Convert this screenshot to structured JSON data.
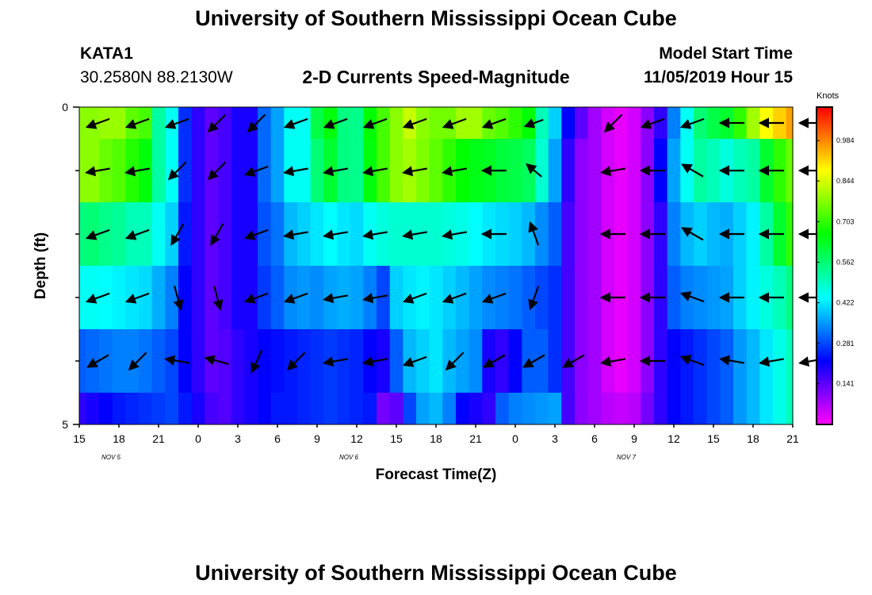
{
  "header": {
    "title": "University of Southern Mississippi Ocean Cube",
    "footer_title": "University of Southern Mississippi Ocean Cube",
    "station": "KATA1",
    "coords": "30.2580N 88.2130W",
    "chart_title": "2-D Currents Speed-Magnitude",
    "start_label": "Model Start Time",
    "start_value": "11/05/2019 Hour 15"
  },
  "chart_data": {
    "type": "heatmap",
    "title": "2-D Currents Speed-Magnitude",
    "xlabel": "Forecast Time(Z)",
    "ylabel": "Depth (ft)",
    "x_tick_labels": [
      "15",
      "18",
      "21",
      "0",
      "3",
      "6",
      "9",
      "12",
      "15",
      "18",
      "21",
      "0",
      "3",
      "6",
      "9",
      "12",
      "15",
      "18",
      "21"
    ],
    "day_labels": [
      {
        "label": "NOV 5",
        "tick_index": 1
      },
      {
        "label": "NOV 6",
        "tick_index": 7
      },
      {
        "label": "NOV 7",
        "tick_index": 14
      }
    ],
    "y_ticks": [
      {
        "depth": 0,
        "label": "0"
      },
      {
        "depth": 5,
        "label": "5"
      }
    ],
    "ylim": [
      0,
      5
    ],
    "x_range_hours": [
      0,
      54
    ],
    "hour_step": 1,
    "depth_levels": [
      0.25,
      1.0,
      2.0,
      3.0,
      4.0,
      4.75
    ],
    "depth_bounds": [
      0,
      0.5,
      1.5,
      2.5,
      3.5,
      4.5,
      5
    ],
    "colorbar": {
      "unit": "Knots",
      "range": [
        0.0,
        1.1
      ],
      "tick_values": [
        0.984,
        0.844,
        0.703,
        0.562,
        0.422,
        0.281,
        0.141
      ],
      "tick_labels": [
        "0.984",
        "0.844",
        "0.703",
        "0.562",
        "0.422",
        "0.281",
        "0.141"
      ]
    },
    "speed_knots": [
      [
        0.78,
        0.78,
        0.79,
        0.79,
        0.74,
        0.72,
        0.52,
        0.45,
        0.26,
        0.18,
        0.14,
        0.16,
        0.2,
        0.2,
        0.31,
        0.36,
        0.45,
        0.45,
        0.6,
        0.65,
        0.55,
        0.54,
        0.66,
        0.72,
        0.78,
        0.83,
        0.78,
        0.76,
        0.76,
        0.8,
        0.8,
        0.75,
        0.73,
        0.7,
        0.66,
        0.5,
        0.4,
        0.22,
        0.14,
        0.08,
        0.04,
        0.02,
        0.04,
        0.1,
        0.18,
        0.33,
        0.45,
        0.56,
        0.6,
        0.62,
        0.7,
        0.8,
        0.88,
        0.92,
        0.96
      ],
      [
        0.78,
        0.78,
        0.75,
        0.73,
        0.69,
        0.65,
        0.52,
        0.45,
        0.26,
        0.18,
        0.14,
        0.16,
        0.2,
        0.2,
        0.31,
        0.36,
        0.45,
        0.45,
        0.56,
        0.62,
        0.55,
        0.54,
        0.65,
        0.72,
        0.78,
        0.8,
        0.77,
        0.74,
        0.7,
        0.66,
        0.64,
        0.63,
        0.61,
        0.6,
        0.58,
        0.48,
        0.36,
        0.18,
        0.1,
        0.08,
        0.04,
        0.02,
        0.04,
        0.1,
        0.22,
        0.36,
        0.45,
        0.52,
        0.5,
        0.47,
        0.5,
        0.52,
        0.62,
        0.7,
        0.75
      ],
      [
        0.55,
        0.56,
        0.54,
        0.53,
        0.5,
        0.5,
        0.45,
        0.4,
        0.24,
        0.18,
        0.14,
        0.16,
        0.2,
        0.2,
        0.29,
        0.32,
        0.38,
        0.4,
        0.42,
        0.44,
        0.42,
        0.41,
        0.45,
        0.47,
        0.48,
        0.48,
        0.48,
        0.48,
        0.47,
        0.46,
        0.44,
        0.42,
        0.41,
        0.4,
        0.38,
        0.34,
        0.3,
        0.16,
        0.1,
        0.08,
        0.04,
        0.02,
        0.04,
        0.1,
        0.18,
        0.33,
        0.38,
        0.4,
        0.38,
        0.37,
        0.4,
        0.43,
        0.52,
        0.62,
        0.7
      ],
      [
        0.45,
        0.45,
        0.44,
        0.43,
        0.42,
        0.41,
        0.37,
        0.33,
        0.22,
        0.18,
        0.14,
        0.16,
        0.2,
        0.2,
        0.27,
        0.3,
        0.34,
        0.35,
        0.34,
        0.36,
        0.37,
        0.36,
        0.33,
        0.28,
        0.4,
        0.42,
        0.43,
        0.42,
        0.4,
        0.38,
        0.36,
        0.34,
        0.33,
        0.32,
        0.3,
        0.28,
        0.26,
        0.16,
        0.1,
        0.08,
        0.04,
        0.02,
        0.04,
        0.1,
        0.18,
        0.3,
        0.33,
        0.34,
        0.35,
        0.36,
        0.4,
        0.43,
        0.47,
        0.5,
        0.55
      ],
      [
        0.3,
        0.31,
        0.32,
        0.33,
        0.33,
        0.32,
        0.3,
        0.28,
        0.22,
        0.18,
        0.14,
        0.15,
        0.18,
        0.2,
        0.22,
        0.23,
        0.24,
        0.25,
        0.26,
        0.27,
        0.26,
        0.25,
        0.22,
        0.2,
        0.3,
        0.38,
        0.4,
        0.42,
        0.38,
        0.36,
        0.34,
        0.2,
        0.18,
        0.22,
        0.3,
        0.3,
        0.26,
        0.16,
        0.1,
        0.08,
        0.04,
        0.02,
        0.04,
        0.1,
        0.18,
        0.22,
        0.24,
        0.26,
        0.28,
        0.3,
        0.35,
        0.38,
        0.42,
        0.46,
        0.5
      ],
      [
        0.18,
        0.2,
        0.22,
        0.24,
        0.25,
        0.26,
        0.27,
        0.28,
        0.24,
        0.2,
        0.16,
        0.15,
        0.18,
        0.2,
        0.22,
        0.24,
        0.24,
        0.25,
        0.26,
        0.27,
        0.26,
        0.25,
        0.24,
        0.12,
        0.14,
        0.28,
        0.36,
        0.38,
        0.33,
        0.22,
        0.2,
        0.18,
        0.3,
        0.33,
        0.34,
        0.35,
        0.36,
        0.16,
        0.1,
        0.08,
        0.06,
        0.05,
        0.06,
        0.12,
        0.18,
        0.22,
        0.24,
        0.26,
        0.28,
        0.3,
        0.35,
        0.38,
        0.42,
        0.46,
        0.5
      ]
    ],
    "vector_hours": [
      0,
      3,
      6,
      9,
      12,
      15,
      18,
      21,
      24,
      27,
      30,
      33,
      36,
      39,
      42,
      45,
      48,
      51,
      54
    ],
    "vector_directions_deg": [
      [
        250,
        250,
        250,
        225,
        225,
        250,
        250,
        250,
        250,
        250,
        250,
        250,
        300,
        225,
        250,
        250,
        270,
        270,
        270
      ],
      [
        260,
        260,
        225,
        225,
        250,
        260,
        260,
        260,
        260,
        260,
        270,
        310,
        225,
        260,
        270,
        300,
        270,
        270,
        270
      ],
      [
        250,
        250,
        210,
        210,
        250,
        260,
        260,
        260,
        260,
        260,
        270,
        340,
        225,
        270,
        270,
        300,
        270,
        270,
        270
      ],
      [
        250,
        250,
        165,
        165,
        250,
        250,
        260,
        260,
        250,
        250,
        250,
        200,
        225,
        270,
        270,
        290,
        270,
        270,
        270
      ],
      [
        240,
        225,
        280,
        285,
        205,
        225,
        260,
        260,
        250,
        225,
        240,
        240,
        240,
        260,
        270,
        290,
        280,
        260,
        260
      ],
      [
        270,
        270,
        260,
        245,
        245,
        260,
        260,
        260,
        260,
        260,
        260,
        250,
        240,
        200,
        0,
        0,
        0,
        0,
        0
      ]
    ],
    "vector_magnitudes": [
      [
        1.0,
        1.0,
        1.0,
        1.0,
        1.0,
        1.0,
        1.0,
        1.0,
        1.0,
        1.0,
        1.0,
        0.8,
        0.0,
        1.0,
        1.0,
        1.0,
        1.0,
        1.0,
        1.0
      ],
      [
        1.0,
        1.0,
        1.0,
        1.0,
        1.0,
        1.0,
        1.0,
        1.0,
        1.0,
        1.0,
        1.0,
        0.8,
        0.0,
        1.0,
        1.0,
        1.0,
        1.0,
        1.0,
        1.0
      ],
      [
        1.0,
        1.0,
        1.0,
        1.0,
        1.0,
        1.0,
        1.0,
        1.0,
        1.0,
        1.0,
        1.0,
        1.0,
        0.0,
        1.0,
        1.0,
        1.0,
        1.0,
        1.0,
        1.0
      ],
      [
        1.0,
        1.0,
        1.0,
        1.0,
        1.0,
        1.0,
        1.0,
        1.0,
        1.0,
        1.0,
        1.0,
        1.0,
        0.0,
        1.0,
        1.0,
        1.0,
        1.0,
        1.0,
        1.0
      ],
      [
        1.0,
        1.0,
        1.0,
        1.0,
        1.0,
        1.0,
        1.0,
        1.0,
        1.0,
        1.0,
        1.0,
        1.0,
        1.0,
        1.0,
        1.0,
        1.0,
        1.0,
        1.0,
        1.0
      ],
      [
        0.0,
        0.0,
        0.0,
        0.0,
        0.0,
        0.0,
        0.0,
        0.0,
        0.0,
        0.0,
        0.0,
        0.0,
        0.0,
        0.0,
        0.0,
        0.0,
        0.0,
        0.0,
        0.0
      ]
    ]
  }
}
